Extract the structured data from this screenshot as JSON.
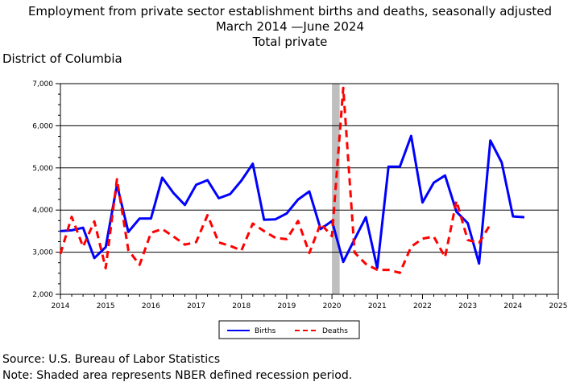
{
  "title": {
    "line1": "Employment from private sector establishment births and deaths, seasonally adjusted",
    "line2": "March 2014 —June 2024",
    "line3": "Total private"
  },
  "region": "District of Columbia",
  "source": "Source: U.S. Bureau of Labor Statistics",
  "note": "Note: Shaded area represents NBER defined recession period.",
  "colors": {
    "births": "#0000ff",
    "deaths": "#ff0000",
    "recession": "#bfbfbf"
  },
  "chart_data": {
    "type": "line",
    "xlim": [
      2014,
      2025
    ],
    "ylim": [
      2000,
      7000
    ],
    "x_ticks": [
      "2014",
      "2015",
      "2016",
      "2017",
      "2018",
      "2019",
      "2020",
      "2021",
      "2022",
      "2023",
      "2024",
      "2025"
    ],
    "y_ticks": [
      "2,000",
      "3,000",
      "4,000",
      "5,000",
      "6,000",
      "7,000"
    ],
    "grid": "horizontal",
    "legend_position": "bottom-center",
    "recession": [
      2020.0,
      2020.17
    ],
    "series": [
      {
        "name": "Births",
        "style": "solid",
        "x": [
          2014.0,
          2014.25,
          2014.5,
          2014.75,
          2015.0,
          2015.25,
          2015.5,
          2015.75,
          2016.0,
          2016.25,
          2016.5,
          2016.75,
          2017.0,
          2017.25,
          2017.5,
          2017.75,
          2018.0,
          2018.25,
          2018.5,
          2018.75,
          2019.0,
          2019.25,
          2019.5,
          2019.75,
          2020.0,
          2020.25,
          2020.5,
          2020.75,
          2021.0,
          2021.25,
          2021.5,
          2021.75,
          2022.0,
          2022.25,
          2022.5,
          2022.75,
          2023.0,
          2023.25,
          2023.5,
          2023.75,
          2024.0,
          2024.25
        ],
        "values": [
          3500,
          3520,
          3580,
          2860,
          3120,
          4600,
          3480,
          3800,
          3800,
          4770,
          4400,
          4120,
          4600,
          4710,
          4280,
          4380,
          4700,
          5100,
          3770,
          3780,
          3920,
          4250,
          4440,
          3550,
          3740,
          2770,
          3310,
          3830,
          2620,
          5030,
          5030,
          5760,
          4180,
          4650,
          4820,
          3960,
          3690,
          2730,
          5650,
          5130,
          3850,
          3830
        ]
      },
      {
        "name": "Deaths",
        "style": "dashed",
        "x": [
          2014.0,
          2014.25,
          2014.5,
          2014.75,
          2015.0,
          2015.25,
          2015.5,
          2015.75,
          2016.0,
          2016.25,
          2016.5,
          2016.75,
          2017.0,
          2017.25,
          2017.5,
          2017.75,
          2018.0,
          2018.25,
          2018.5,
          2018.75,
          2019.0,
          2019.25,
          2019.5,
          2019.75,
          2020.0,
          2020.25,
          2020.5,
          2020.75,
          2021.0,
          2021.25,
          2021.5,
          2021.75,
          2022.0,
          2022.25,
          2022.5,
          2022.75,
          2023.0,
          2023.25,
          2023.5
        ],
        "values": [
          2960,
          3840,
          3130,
          3730,
          2620,
          4730,
          3050,
          2700,
          3460,
          3550,
          3370,
          3180,
          3240,
          3880,
          3230,
          3150,
          3040,
          3680,
          3500,
          3340,
          3310,
          3740,
          2980,
          3680,
          3380,
          6900,
          2990,
          2720,
          2580,
          2580,
          2510,
          3130,
          3320,
          3370,
          2880,
          4220,
          3290,
          3220,
          3660
        ]
      }
    ]
  }
}
